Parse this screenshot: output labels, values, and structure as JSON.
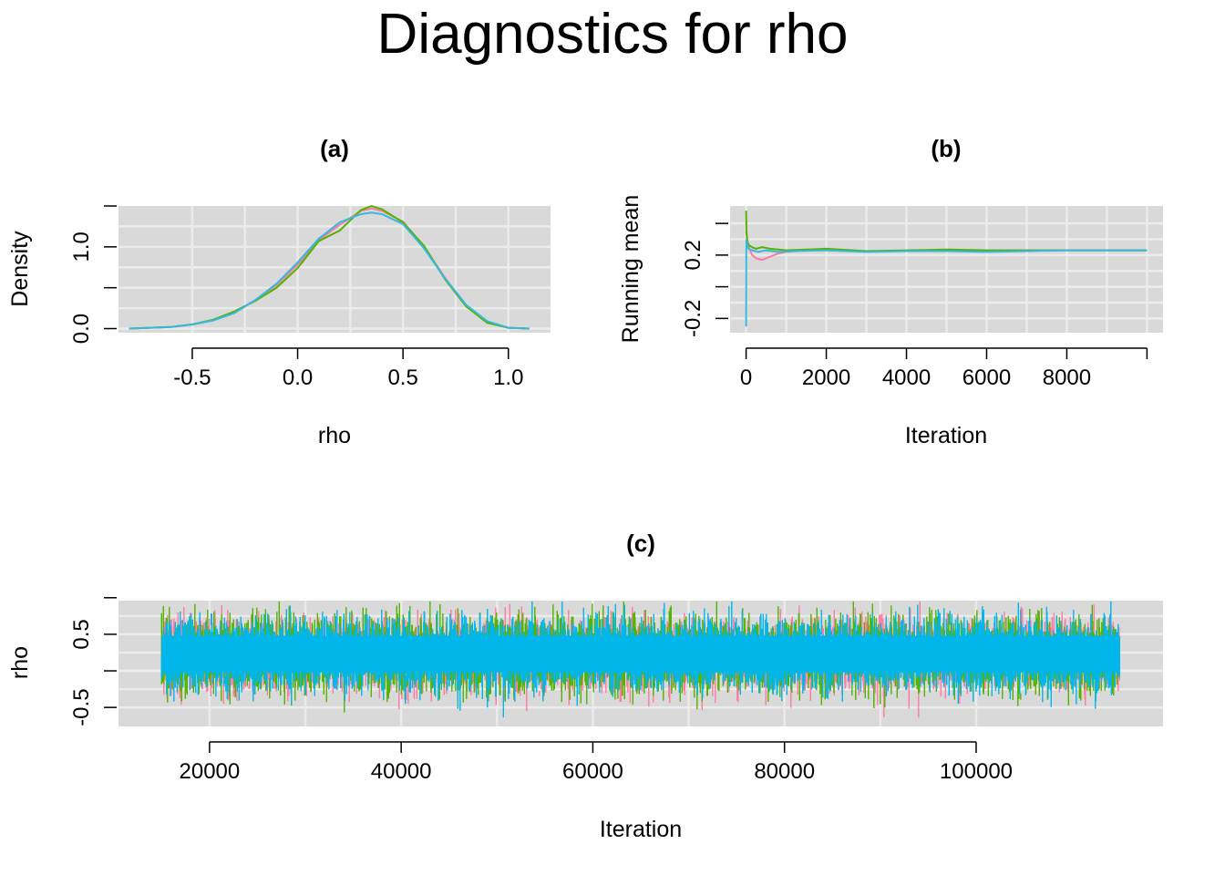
{
  "title": "Diagnostics for rho",
  "colors": {
    "panel_bg": "#d9d9d9",
    "grid": "#ebebeb",
    "chain1": "#F8766D",
    "chain2": "#53B400",
    "chain3": "#00B6EB",
    "chain3_line": "#37b8e0",
    "chain1_line": "#ff7aa0"
  },
  "chart_data": [
    {
      "id": "a",
      "panel_title": "(a)",
      "type": "line",
      "xlabel": "rho",
      "ylabel": "Density",
      "xlim": [
        -0.85,
        1.2
      ],
      "ylim": [
        -0.05,
        1.5
      ],
      "xticks": [
        -0.5,
        0.0,
        0.5,
        1.0
      ],
      "xtick_labels": [
        "-0.5",
        "0.0",
        "0.5",
        "1.0"
      ],
      "yticks": [
        0.0,
        0.5,
        1.0,
        1.5
      ],
      "ytick_labels": [
        "0.0",
        "",
        "1.0",
        ""
      ],
      "grid": true,
      "series": [
        {
          "color": "#ff7aa0",
          "x": [
            -0.8,
            -0.7,
            -0.6,
            -0.5,
            -0.4,
            -0.3,
            -0.2,
            -0.1,
            0.0,
            0.1,
            0.2,
            0.3,
            0.35,
            0.4,
            0.5,
            0.6,
            0.7,
            0.8,
            0.9,
            1.0,
            1.1
          ],
          "y": [
            0.0,
            0.01,
            0.02,
            0.05,
            0.1,
            0.2,
            0.35,
            0.53,
            0.78,
            1.08,
            1.27,
            1.44,
            1.47,
            1.44,
            1.31,
            1.0,
            0.62,
            0.28,
            0.08,
            0.01,
            0.0
          ]
        },
        {
          "color": "#53B400",
          "x": [
            -0.8,
            -0.7,
            -0.6,
            -0.5,
            -0.4,
            -0.3,
            -0.2,
            -0.1,
            0.0,
            0.1,
            0.2,
            0.3,
            0.35,
            0.4,
            0.5,
            0.6,
            0.7,
            0.8,
            0.9,
            1.0,
            1.1
          ],
          "y": [
            0.0,
            0.01,
            0.02,
            0.05,
            0.11,
            0.21,
            0.34,
            0.5,
            0.74,
            1.07,
            1.2,
            1.45,
            1.5,
            1.46,
            1.3,
            1.01,
            0.6,
            0.27,
            0.07,
            0.01,
            0.0
          ]
        },
        {
          "color": "#37b8e0",
          "x": [
            -0.8,
            -0.7,
            -0.6,
            -0.5,
            -0.4,
            -0.3,
            -0.2,
            -0.1,
            0.0,
            0.1,
            0.2,
            0.3,
            0.35,
            0.4,
            0.5,
            0.6,
            0.7,
            0.8,
            0.9,
            1.0,
            1.1
          ],
          "y": [
            0.0,
            0.01,
            0.02,
            0.05,
            0.1,
            0.19,
            0.35,
            0.55,
            0.81,
            1.1,
            1.3,
            1.4,
            1.42,
            1.4,
            1.28,
            0.98,
            0.61,
            0.29,
            0.09,
            0.01,
            0.0
          ]
        }
      ]
    },
    {
      "id": "b",
      "panel_title": "(b)",
      "type": "line",
      "xlabel": "Iteration",
      "ylabel": "Running mean",
      "xlim": [
        -400,
        10400
      ],
      "ylim": [
        -0.29,
        0.51
      ],
      "xticks": [
        0,
        2000,
        4000,
        6000,
        8000,
        10000
      ],
      "xtick_labels": [
        "0",
        "2000",
        "4000",
        "6000",
        "8000",
        ""
      ],
      "yticks": [
        -0.2,
        0.0,
        0.2,
        0.4
      ],
      "ytick_labels": [
        "-0.2",
        "",
        "0.2",
        ""
      ],
      "grid": true,
      "series": [
        {
          "color": "#ff7aa0",
          "x": [
            1,
            30,
            80,
            150,
            250,
            400,
            600,
            800,
            1000,
            1500,
            2000,
            3000,
            4000,
            5000,
            6000,
            7000,
            8000,
            9000,
            10000
          ],
          "y": [
            0.35,
            0.3,
            0.24,
            0.2,
            0.18,
            0.17,
            0.19,
            0.21,
            0.22,
            0.23,
            0.23,
            0.225,
            0.225,
            0.23,
            0.225,
            0.23,
            0.23,
            0.23,
            0.23
          ]
        },
        {
          "color": "#53B400",
          "x": [
            1,
            10,
            30,
            80,
            150,
            250,
            400,
            600,
            1000,
            1500,
            2000,
            3000,
            4000,
            5000,
            6000,
            7000,
            8000,
            9000,
            10000
          ],
          "y": [
            0.48,
            0.35,
            0.28,
            0.26,
            0.25,
            0.24,
            0.25,
            0.24,
            0.23,
            0.235,
            0.24,
            0.225,
            0.23,
            0.235,
            0.23,
            0.23,
            0.23,
            0.23,
            0.23
          ]
        },
        {
          "color": "#37b8e0",
          "x": [
            1,
            5,
            20,
            60,
            150,
            300,
            500,
            800,
            1200,
            2000,
            3000,
            4000,
            5000,
            6000,
            7000,
            8000,
            9000,
            10000
          ],
          "y": [
            -0.25,
            0.3,
            0.27,
            0.24,
            0.23,
            0.22,
            0.23,
            0.22,
            0.225,
            0.23,
            0.22,
            0.225,
            0.225,
            0.22,
            0.225,
            0.23,
            0.23,
            0.23
          ]
        }
      ]
    },
    {
      "id": "c",
      "panel_title": "(c)",
      "type": "line",
      "xlabel": "Iteration",
      "ylabel": "rho",
      "xlim": [
        10500,
        119500
      ],
      "ylim": [
        -0.76,
        0.96
      ],
      "xticks": [
        20000,
        40000,
        60000,
        80000,
        100000
      ],
      "xtick_labels": [
        "20000",
        "40000",
        "60000",
        "80000",
        "100000"
      ],
      "yticks": [
        -0.5,
        0.0,
        0.5,
        1.0
      ],
      "ytick_labels": [
        "-0.5",
        "",
        "0.5",
        ""
      ],
      "grid": true,
      "iterations": [
        15001,
        115000
      ],
      "series": [
        {
          "color": "#ff7aa0",
          "mean": 0.22,
          "sd": 0.24,
          "seed": 7
        },
        {
          "color": "#53B400",
          "mean": 0.22,
          "sd": 0.25,
          "seed": 19
        },
        {
          "color": "#00B6EB",
          "mean": 0.22,
          "sd": 0.24,
          "seed": 31
        }
      ]
    }
  ]
}
